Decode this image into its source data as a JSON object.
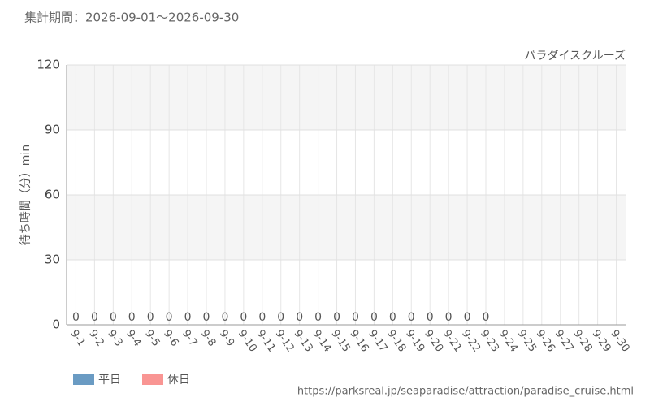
{
  "chart_data": {
    "type": "bar",
    "title": "集計期間：2026-09-01～2026-09-30",
    "subtitle": "パラダイスクルーズ",
    "y_label": "待ち時間（分）min",
    "source": "https://parksreal.jp/seaparadise/attraction/paradise_cruise.html",
    "categories": [
      "9-1",
      "9-2",
      "9-3",
      "9-4",
      "9-5",
      "9-6",
      "9-7",
      "9-8",
      "9-9",
      "9-10",
      "9-11",
      "9-12",
      "9-13",
      "9-14",
      "9-15",
      "9-16",
      "9-17",
      "9-18",
      "9-19",
      "9-20",
      "9-21",
      "9-22",
      "9-23",
      "9-24",
      "9-25",
      "9-26",
      "9-27",
      "9-28",
      "9-29",
      "9-30"
    ],
    "category_series": [
      0,
      0,
      0,
      0,
      1,
      1,
      0,
      0,
      0,
      0,
      0,
      1,
      1,
      0,
      0,
      0,
      0,
      0,
      1,
      1,
      1,
      1,
      1,
      0,
      0,
      1,
      1,
      0,
      0,
      0
    ],
    "series": [
      {
        "name": "平日",
        "color": "#6a9bc3",
        "values": [
          0,
          0,
          0,
          0,
          null,
          null,
          0,
          0,
          0,
          0,
          0,
          null,
          null,
          0,
          0,
          0,
          0,
          0,
          null,
          null,
          null,
          null,
          null,
          null,
          null,
          null,
          null,
          null,
          null,
          null
        ]
      },
      {
        "name": "休日",
        "color": "#f99593",
        "values": [
          null,
          null,
          null,
          null,
          0,
          0,
          null,
          null,
          null,
          null,
          null,
          0,
          0,
          null,
          null,
          null,
          null,
          null,
          0,
          0,
          0,
          0,
          0,
          null,
          null,
          null,
          null,
          null,
          null,
          null
        ]
      }
    ],
    "ylim": [
      0,
      120
    ],
    "yticks": [
      0,
      30,
      60,
      90,
      120
    ],
    "grid": true
  }
}
